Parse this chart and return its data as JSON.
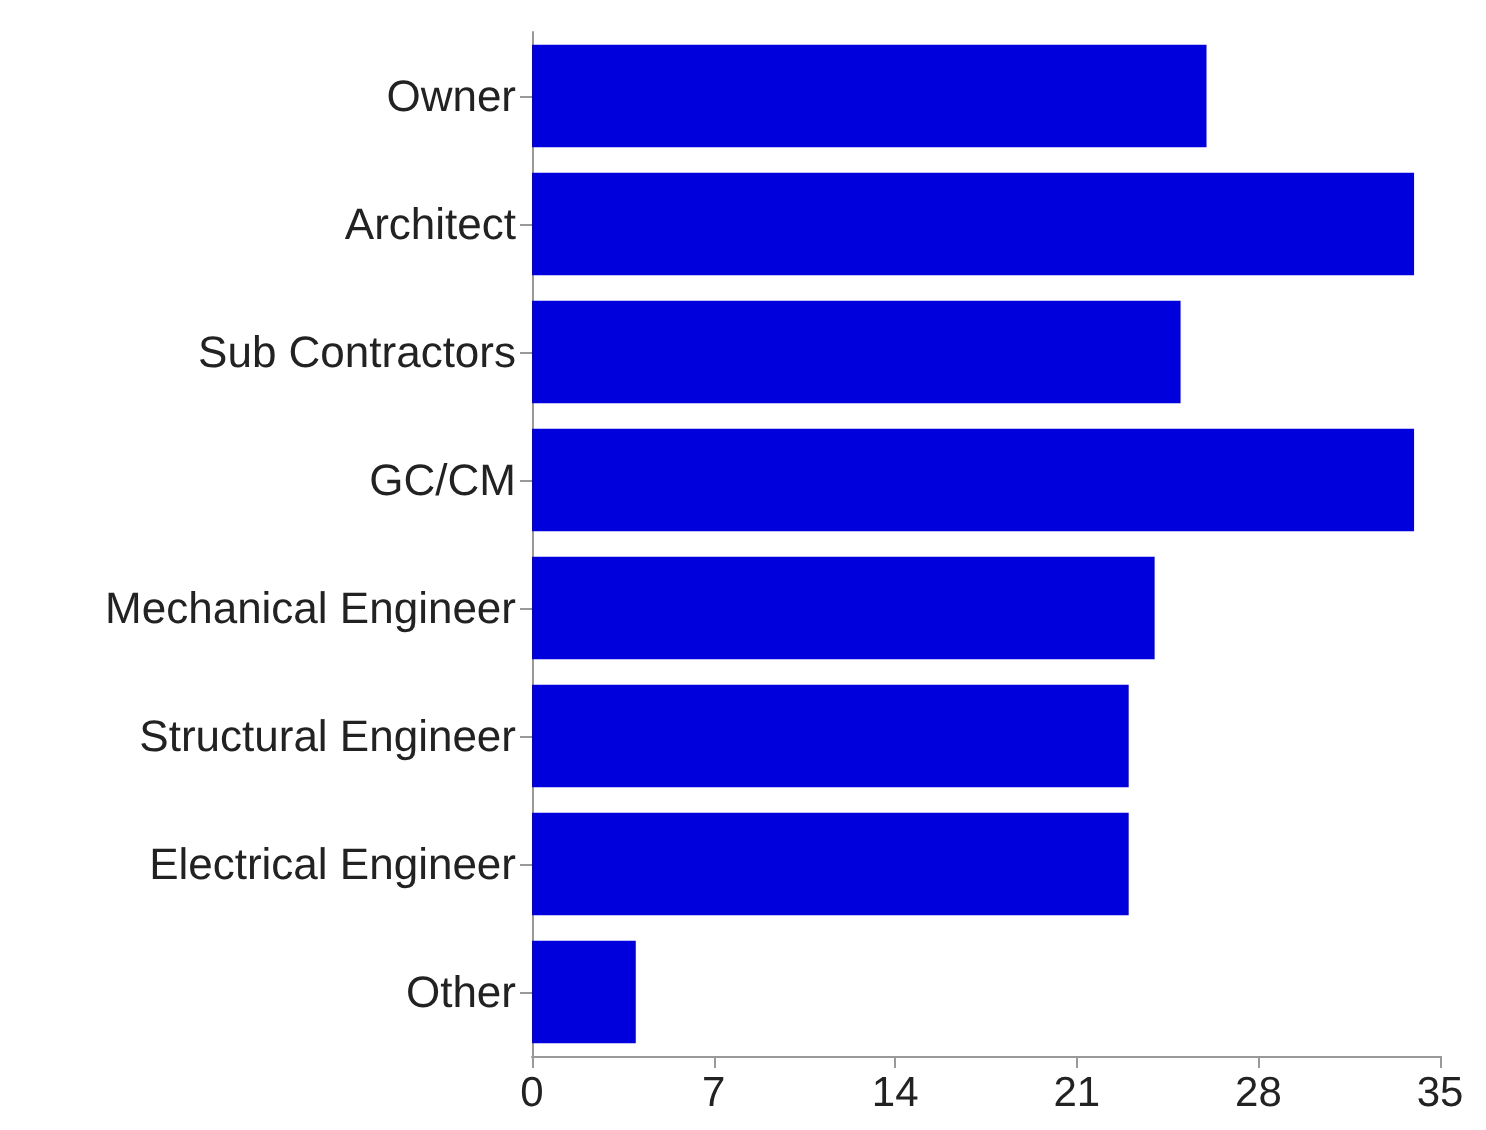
{
  "chart_data": {
    "type": "bar",
    "orientation": "horizontal",
    "categories": [
      "Owner",
      "Architect",
      "Sub Contractors",
      "GC/CM",
      "Mechanical Engineer",
      "Structural Engineer",
      "Electrical Engineer",
      "Other"
    ],
    "values": [
      26,
      34,
      25,
      34,
      24,
      23,
      23,
      4
    ],
    "color": "#0000dd",
    "xlim": [
      0,
      35
    ],
    "xticks": [
      0,
      7,
      14,
      21,
      28,
      35
    ]
  }
}
